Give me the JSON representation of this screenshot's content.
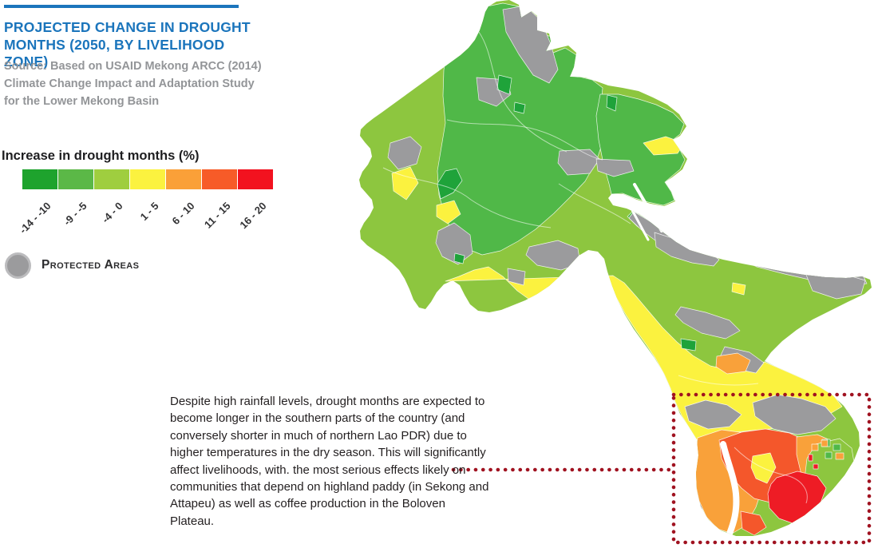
{
  "header": {
    "rule_color": "#1B75BC",
    "title": "PROJECTED CHANGE IN DROUGHT MONTHS (2050, BY LIVELIHOOD ZONE)",
    "title_color": "#1B75BC",
    "source": "Source: Based on USAID Mekong ARCC (2014) Climate Change Impact and Adaptation Study for the Lower Mekong Basin"
  },
  "legend": {
    "title": "Increase in drought months (%)",
    "classes": [
      {
        "label": "-14 - -10",
        "color": "#1EA32D"
      },
      {
        "label": "-9 - -5",
        "color": "#5BB847"
      },
      {
        "label": "-4 - 0",
        "color": "#9FCE3F"
      },
      {
        "label": "1 - 5",
        "color": "#FBF23F"
      },
      {
        "label": "6 - 10",
        "color": "#FAA038"
      },
      {
        "label": "11 - 15",
        "color": "#F75B28"
      },
      {
        "label": "16 - 20",
        "color": "#F2121F"
      }
    ],
    "protected_areas_label": "Protected Areas",
    "protected_areas_color": "#9B9B9D"
  },
  "annotation": {
    "text": "Despite high rainfall levels, drought months are expected to become longer in the southern parts of the country (and conversely shorter in much of northern Lao PDR) due to higher temperatures in the dry season. This will significantly affect livelihoods, with. the most serious effects likely on communities that depend on highland paddy (in Sekong and Attapeu) as well as coffee production in the Boloven Plateau.",
    "callout_color": "#A01220"
  },
  "map": {
    "region": "Lao PDR livelihood zones choropleth",
    "colors": {
      "base": "#8DC63F",
      "mid_green": "#50B848",
      "dark_green": "#1FA33A",
      "protected_gray": "#9B9B9D",
      "yellow": "#FBF23F",
      "orange": "#F9A13A",
      "red_orange": "#F4572B",
      "red": "#EE1C25",
      "zone_border": "#FFFFFF"
    }
  }
}
